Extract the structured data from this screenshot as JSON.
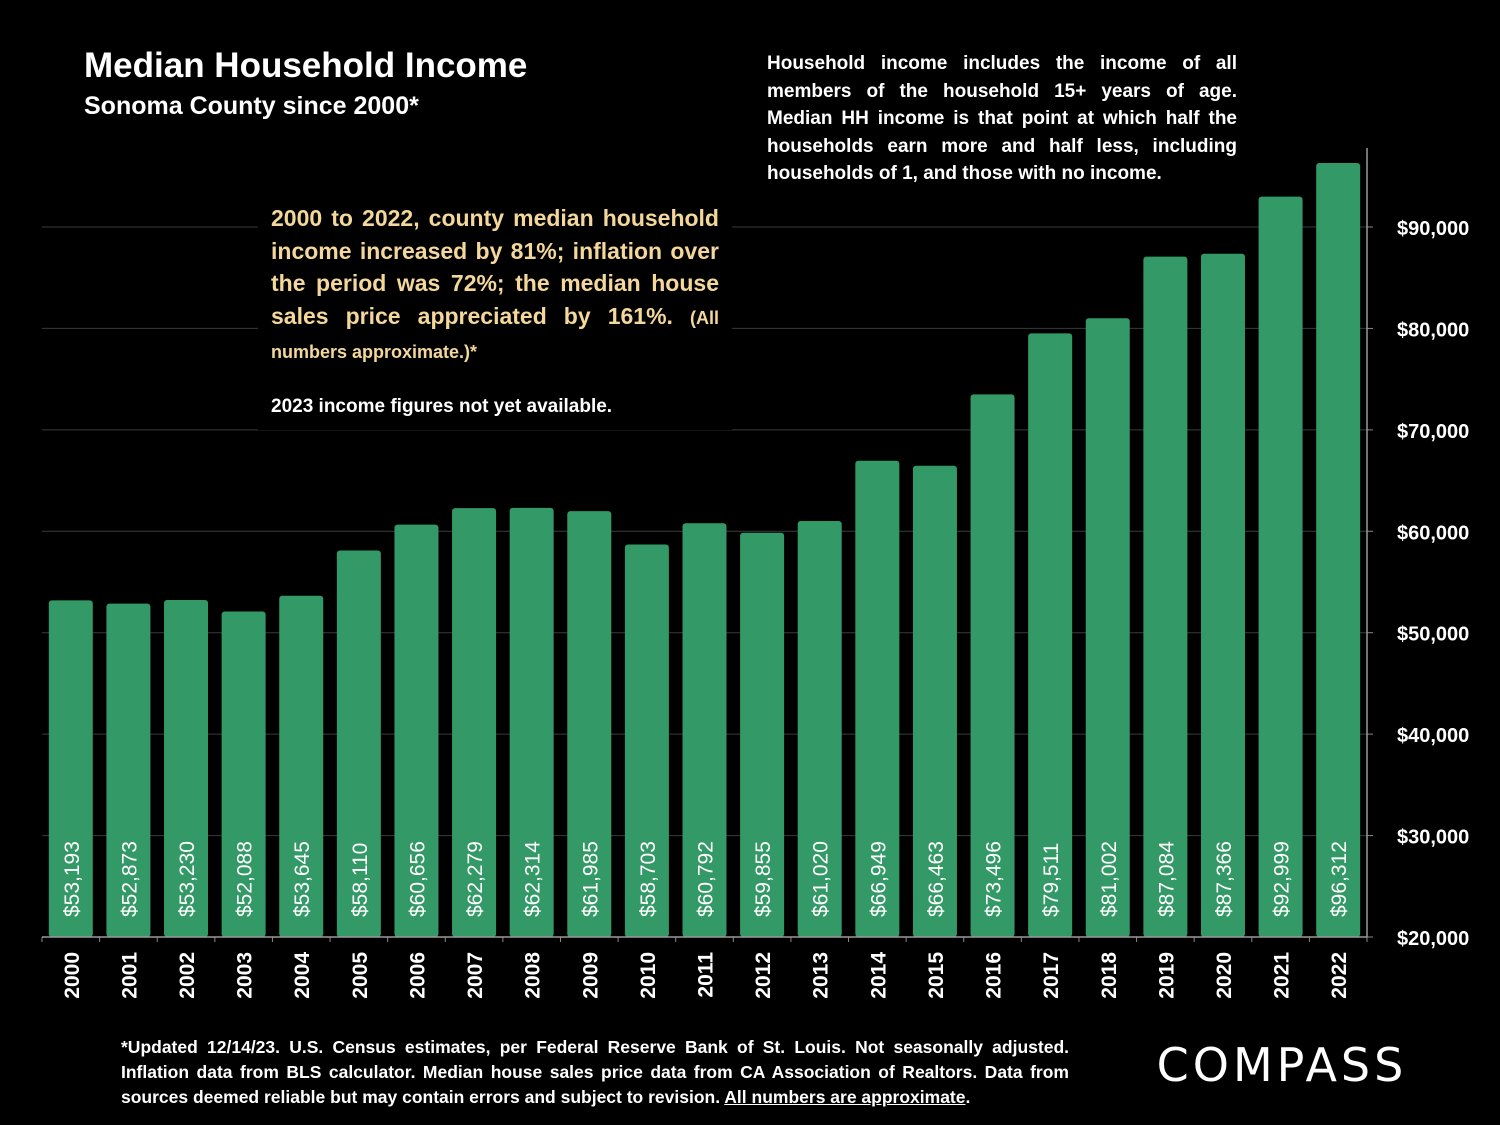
{
  "header": {
    "title": "Median Household Income",
    "subtitle": "Sonoma County since 2000*"
  },
  "note": "Household income includes the income of all members of the household 15+ years of age. Median HH income is that point at which half the households earn more and half less, including households of 1, and those with no income.",
  "callout": {
    "main": "2000 to 2022, county median household income increased by 81%; inflation over the period was 72%; the median house sales price appreciated by 161%.",
    "small": "(All numbers approximate.)*",
    "secondary": "2023 income figures not yet available."
  },
  "footnote": {
    "text": "*Updated 12/14/23. U.S. Census estimates, per Federal Reserve Bank of St. Louis. Not seasonally adjusted. Inflation data from BLS calculator. Median house sales price data from CA Association of Realtors. Data from sources deemed reliable but may contain errors and subject to revision.",
    "link": "All numbers are approximate",
    "end": "."
  },
  "logo": {
    "text": "COMPASS"
  },
  "colors": {
    "bar": "#339966",
    "background": "#000000",
    "text": "#ffffff",
    "accent": "#f4d79a",
    "grid": "#3a3a3a"
  },
  "chart_data": {
    "type": "bar",
    "title": "Median Household Income",
    "subtitle": "Sonoma County since 2000*",
    "xlabel": "",
    "ylabel": "",
    "ylim": [
      20000,
      98000
    ],
    "yticks": [
      20000,
      30000,
      40000,
      50000,
      60000,
      70000,
      80000,
      90000
    ],
    "ytick_labels": [
      "$20,000",
      "$30,000",
      "$40,000",
      "$50,000",
      "$60,000",
      "$70,000",
      "$80,000",
      "$90,000"
    ],
    "y_axis_side": "right",
    "grid": true,
    "categories": [
      "2000",
      "2001",
      "2002",
      "2003",
      "2004",
      "2005",
      "2006",
      "2007",
      "2008",
      "2009",
      "2010",
      "2011",
      "2012",
      "2013",
      "2014",
      "2015",
      "2016",
      "2017",
      "2018",
      "2019",
      "2020",
      "2021",
      "2022"
    ],
    "values": [
      53193,
      52873,
      53230,
      52088,
      53645,
      58110,
      60656,
      62279,
      62314,
      61985,
      58703,
      60792,
      59855,
      61020,
      66949,
      66463,
      73496,
      79511,
      81002,
      87084,
      87366,
      92999,
      96312
    ],
    "data_labels": [
      "$53,193",
      "$52,873",
      "$53,230",
      "$52,088",
      "$53,645",
      "$58,110",
      "$60,656",
      "$62,279",
      "$62,314",
      "$61,985",
      "$58,703",
      "$60,792",
      "$59,855",
      "$61,020",
      "$66,949",
      "$66,463",
      "$73,496",
      "$79,511",
      "$81,002",
      "$87,084",
      "$87,366",
      "$92,999",
      "$96,312"
    ]
  }
}
